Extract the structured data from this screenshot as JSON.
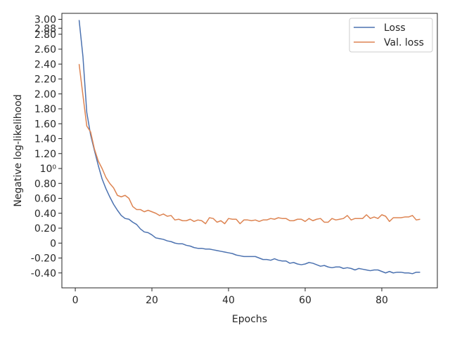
{
  "chart_data": {
    "type": "line",
    "xlabel": "Epochs",
    "ylabel": "Negative log-likelihood",
    "xlim": [
      -3.5,
      94.5
    ],
    "ylim": [
      -0.6,
      3.08
    ],
    "x_ticks": [
      0,
      20,
      40,
      60,
      80
    ],
    "y_ticks": [
      {
        "value": 3.0,
        "label": "3.00"
      },
      {
        "value": 2.88,
        "label": "2.88"
      },
      {
        "value": 2.8,
        "label": "2.80"
      },
      {
        "value": 2.6,
        "label": "2.60"
      },
      {
        "value": 2.4,
        "label": "2.40"
      },
      {
        "value": 2.2,
        "label": "2.20"
      },
      {
        "value": 2.0,
        "label": "2.00"
      },
      {
        "value": 1.8,
        "label": "1.80"
      },
      {
        "value": 1.6,
        "label": "1.60"
      },
      {
        "value": 1.4,
        "label": "1.40"
      },
      {
        "value": 1.2,
        "label": "1.20"
      },
      {
        "value": 1.0,
        "label": "10⁰"
      },
      {
        "value": 0.8,
        "label": "0.80"
      },
      {
        "value": 0.6,
        "label": "0.60"
      },
      {
        "value": 0.4,
        "label": "0.40"
      },
      {
        "value": 0.2,
        "label": "0.20"
      },
      {
        "value": 0.0,
        "label": "0"
      },
      {
        "value": -0.2,
        "label": "-0.20"
      },
      {
        "value": -0.4,
        "label": "-0.40"
      }
    ],
    "legend_position": "top-right",
    "grid": false,
    "x": [
      1,
      2,
      3,
      4,
      5,
      6,
      7,
      8,
      9,
      10,
      11,
      12,
      13,
      14,
      15,
      16,
      17,
      18,
      19,
      20,
      21,
      22,
      23,
      24,
      25,
      26,
      27,
      28,
      29,
      30,
      31,
      32,
      33,
      34,
      35,
      36,
      37,
      38,
      39,
      40,
      41,
      42,
      43,
      44,
      45,
      46,
      47,
      48,
      49,
      50,
      51,
      52,
      53,
      54,
      55,
      56,
      57,
      58,
      59,
      60,
      61,
      62,
      63,
      64,
      65,
      66,
      67,
      68,
      69,
      70,
      71,
      72,
      73,
      74,
      75,
      76,
      77,
      78,
      79,
      80,
      81,
      82,
      83,
      84,
      85,
      86,
      87,
      88,
      89,
      90
    ],
    "series": [
      {
        "name": "Loss",
        "color": "#4c72b0",
        "values": [
          2.99,
          2.5,
          1.75,
          1.45,
          1.24,
          1.04,
          0.86,
          0.73,
          0.62,
          0.52,
          0.44,
          0.37,
          0.33,
          0.32,
          0.28,
          0.25,
          0.19,
          0.15,
          0.14,
          0.11,
          0.07,
          0.06,
          0.05,
          0.03,
          0.02,
          0.0,
          -0.01,
          -0.01,
          -0.03,
          -0.04,
          -0.06,
          -0.07,
          -0.07,
          -0.08,
          -0.08,
          -0.09,
          -0.1,
          -0.11,
          -0.12,
          -0.13,
          -0.14,
          -0.16,
          -0.17,
          -0.18,
          -0.18,
          -0.18,
          -0.18,
          -0.2,
          -0.22,
          -0.22,
          -0.23,
          -0.21,
          -0.23,
          -0.24,
          -0.24,
          -0.27,
          -0.26,
          -0.28,
          -0.29,
          -0.28,
          -0.26,
          -0.27,
          -0.29,
          -0.31,
          -0.3,
          -0.32,
          -0.33,
          -0.32,
          -0.32,
          -0.34,
          -0.33,
          -0.34,
          -0.36,
          -0.34,
          -0.35,
          -0.36,
          -0.37,
          -0.36,
          -0.36,
          -0.38,
          -0.4,
          -0.38,
          -0.4,
          -0.39,
          -0.39,
          -0.4,
          -0.4,
          -0.41,
          -0.39,
          -0.39
        ]
      },
      {
        "name": "Val. loss",
        "color": "#dd8452",
        "values": [
          2.4,
          1.98,
          1.57,
          1.49,
          1.26,
          1.1,
          1.0,
          0.88,
          0.8,
          0.74,
          0.64,
          0.62,
          0.64,
          0.6,
          0.49,
          0.45,
          0.45,
          0.42,
          0.44,
          0.42,
          0.4,
          0.37,
          0.39,
          0.36,
          0.37,
          0.31,
          0.32,
          0.3,
          0.3,
          0.32,
          0.29,
          0.31,
          0.3,
          0.26,
          0.34,
          0.33,
          0.28,
          0.3,
          0.26,
          0.33,
          0.32,
          0.32,
          0.26,
          0.31,
          0.31,
          0.3,
          0.31,
          0.29,
          0.31,
          0.31,
          0.33,
          0.32,
          0.34,
          0.33,
          0.33,
          0.3,
          0.3,
          0.32,
          0.32,
          0.29,
          0.33,
          0.3,
          0.32,
          0.33,
          0.28,
          0.28,
          0.33,
          0.31,
          0.32,
          0.33,
          0.37,
          0.31,
          0.33,
          0.33,
          0.33,
          0.38,
          0.33,
          0.35,
          0.33,
          0.38,
          0.36,
          0.29,
          0.34,
          0.34,
          0.34,
          0.35,
          0.35,
          0.37,
          0.31,
          0.32
        ]
      }
    ]
  }
}
